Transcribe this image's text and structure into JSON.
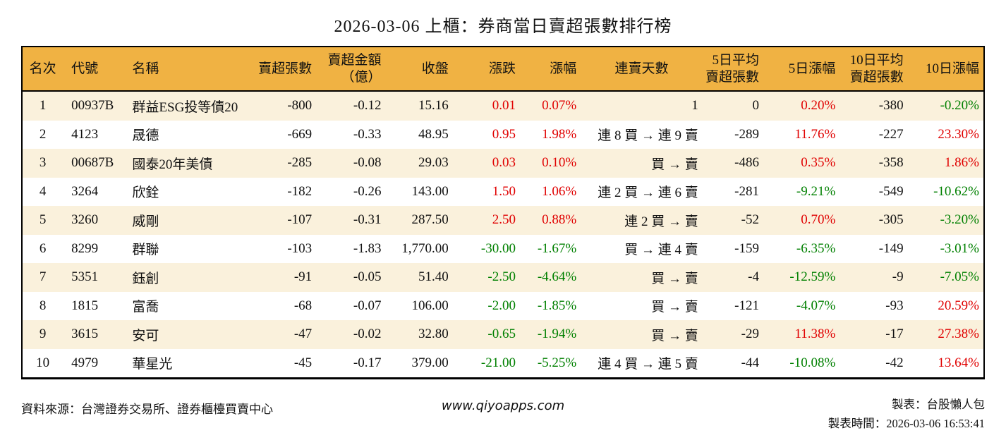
{
  "title": "2026-03-06 上櫃：券商當日賣超張數排行榜",
  "colors": {
    "header_bg": "#F0B243",
    "row_alt_bg": "#FAF1DC",
    "up_red": "#E00000",
    "down_green": "#008000"
  },
  "table": {
    "columns": [
      {
        "key": "rank",
        "label": "名次"
      },
      {
        "key": "code",
        "label": "代號"
      },
      {
        "key": "name",
        "label": "名稱"
      },
      {
        "key": "sell_volume",
        "label": "賣超張數"
      },
      {
        "key": "sell_amount",
        "label": "賣超金額\n（億）"
      },
      {
        "key": "close",
        "label": "收盤"
      },
      {
        "key": "change",
        "label": "漲跌"
      },
      {
        "key": "change_pct",
        "label": "漲幅"
      },
      {
        "key": "streak",
        "label": "連賣天數"
      },
      {
        "key": "avg5",
        "label": "5日平均\n賣超張數"
      },
      {
        "key": "pct5",
        "label": "5日漲幅"
      },
      {
        "key": "avg10",
        "label": "10日平均\n賣超張數"
      },
      {
        "key": "pct10",
        "label": "10日漲幅"
      }
    ],
    "rows": [
      {
        "rank": "1",
        "code": "00937B",
        "name": "群益ESG投等債20",
        "sell_volume": "-800",
        "sell_amount": "-0.12",
        "close": "15.16",
        "change": "0.01",
        "change_pct": "0.07%",
        "streak": "1",
        "avg5": "0",
        "pct5": "0.20%",
        "avg10": "-380",
        "pct10": "-0.20%"
      },
      {
        "rank": "2",
        "code": "4123",
        "name": "晟德",
        "sell_volume": "-669",
        "sell_amount": "-0.33",
        "close": "48.95",
        "change": "0.95",
        "change_pct": "1.98%",
        "streak": "連 8 買 → 連 9 賣",
        "avg5": "-289",
        "pct5": "11.76%",
        "avg10": "-227",
        "pct10": "23.30%"
      },
      {
        "rank": "3",
        "code": "00687B",
        "name": "國泰20年美債",
        "sell_volume": "-285",
        "sell_amount": "-0.08",
        "close": "29.03",
        "change": "0.03",
        "change_pct": "0.10%",
        "streak": "買 → 賣",
        "avg5": "-486",
        "pct5": "0.35%",
        "avg10": "-358",
        "pct10": "1.86%"
      },
      {
        "rank": "4",
        "code": "3264",
        "name": "欣銓",
        "sell_volume": "-182",
        "sell_amount": "-0.26",
        "close": "143.00",
        "change": "1.50",
        "change_pct": "1.06%",
        "streak": "連 2 買 → 連 6 賣",
        "avg5": "-281",
        "pct5": "-9.21%",
        "avg10": "-549",
        "pct10": "-10.62%"
      },
      {
        "rank": "5",
        "code": "3260",
        "name": "威剛",
        "sell_volume": "-107",
        "sell_amount": "-0.31",
        "close": "287.50",
        "change": "2.50",
        "change_pct": "0.88%",
        "streak": "連 2 買 → 賣",
        "avg5": "-52",
        "pct5": "0.70%",
        "avg10": "-305",
        "pct10": "-3.20%"
      },
      {
        "rank": "6",
        "code": "8299",
        "name": "群聯",
        "sell_volume": "-103",
        "sell_amount": "-1.83",
        "close": "1,770.00",
        "change": "-30.00",
        "change_pct": "-1.67%",
        "streak": "買 → 連 4 賣",
        "avg5": "-159",
        "pct5": "-6.35%",
        "avg10": "-149",
        "pct10": "-3.01%"
      },
      {
        "rank": "7",
        "code": "5351",
        "name": "鈺創",
        "sell_volume": "-91",
        "sell_amount": "-0.05",
        "close": "51.40",
        "change": "-2.50",
        "change_pct": "-4.64%",
        "streak": "買 → 賣",
        "avg5": "-4",
        "pct5": "-12.59%",
        "avg10": "-9",
        "pct10": "-7.05%"
      },
      {
        "rank": "8",
        "code": "1815",
        "name": "富喬",
        "sell_volume": "-68",
        "sell_amount": "-0.07",
        "close": "106.00",
        "change": "-2.00",
        "change_pct": "-1.85%",
        "streak": "買 → 賣",
        "avg5": "-121",
        "pct5": "-4.07%",
        "avg10": "-93",
        "pct10": "20.59%"
      },
      {
        "rank": "9",
        "code": "3615",
        "name": "安可",
        "sell_volume": "-47",
        "sell_amount": "-0.02",
        "close": "32.80",
        "change": "-0.65",
        "change_pct": "-1.94%",
        "streak": "買 → 賣",
        "avg5": "-29",
        "pct5": "11.38%",
        "avg10": "-17",
        "pct10": "27.38%"
      },
      {
        "rank": "10",
        "code": "4979",
        "name": "華星光",
        "sell_volume": "-45",
        "sell_amount": "-0.17",
        "close": "379.00",
        "change": "-21.00",
        "change_pct": "-5.25%",
        "streak": "連 4 買 → 連 5 賣",
        "avg5": "-44",
        "pct5": "-10.08%",
        "avg10": "-42",
        "pct10": "13.64%"
      }
    ]
  },
  "footer": {
    "source": "資料來源：台灣證券交易所、證券櫃檯買賣中心",
    "website": "www.qiyoapps.com",
    "maker": "製表：台股懶人包",
    "made_at": "製表時間：2026-03-06 16:53:41"
  },
  "chart_data": {
    "type": "table",
    "title": "2026-03-06 上櫃：券商當日賣超張數排行榜",
    "columns": [
      "名次",
      "代號",
      "名稱",
      "賣超張數",
      "賣超金額（億）",
      "收盤",
      "漲跌",
      "漲幅",
      "連賣天數",
      "5日平均賣超張數",
      "5日漲幅",
      "10日平均賣超張數",
      "10日漲幅"
    ],
    "rows": [
      [
        "1",
        "00937B",
        "群益ESG投等債20",
        -800,
        -0.12,
        15.16,
        0.01,
        "0.07%",
        "1",
        0,
        "0.20%",
        -380,
        "-0.20%"
      ],
      [
        "2",
        "4123",
        "晟德",
        -669,
        -0.33,
        48.95,
        0.95,
        "1.98%",
        "連 8 買 → 連 9 賣",
        -289,
        "11.76%",
        -227,
        "23.30%"
      ],
      [
        "3",
        "00687B",
        "國泰20年美債",
        -285,
        -0.08,
        29.03,
        0.03,
        "0.10%",
        "買 → 賣",
        -486,
        "0.35%",
        -358,
        "1.86%"
      ],
      [
        "4",
        "3264",
        "欣銓",
        -182,
        -0.26,
        143.0,
        1.5,
        "1.06%",
        "連 2 買 → 連 6 賣",
        -281,
        "-9.21%",
        -549,
        "-10.62%"
      ],
      [
        "5",
        "3260",
        "威剛",
        -107,
        -0.31,
        287.5,
        2.5,
        "0.88%",
        "連 2 買 → 賣",
        -52,
        "0.70%",
        -305,
        "-3.20%"
      ],
      [
        "6",
        "8299",
        "群聯",
        -103,
        -1.83,
        1770.0,
        -30.0,
        "-1.67%",
        "買 → 連 4 賣",
        -159,
        "-6.35%",
        -149,
        "-3.01%"
      ],
      [
        "7",
        "5351",
        "鈺創",
        -91,
        -0.05,
        51.4,
        -2.5,
        "-4.64%",
        "買 → 賣",
        -4,
        "-12.59%",
        -9,
        "-7.05%"
      ],
      [
        "8",
        "1815",
        "富喬",
        -68,
        -0.07,
        106.0,
        -2.0,
        "-1.85%",
        "買 → 賣",
        -121,
        "-4.07%",
        -93,
        "20.59%"
      ],
      [
        "9",
        "3615",
        "安可",
        -47,
        -0.02,
        32.8,
        -0.65,
        "-1.94%",
        "買 → 賣",
        -29,
        "11.38%",
        -17,
        "27.38%"
      ],
      [
        "10",
        "4979",
        "華星光",
        -45,
        -0.17,
        379.0,
        -21.0,
        "-5.25%",
        "連 4 買 → 連 5 賣",
        -44,
        "-10.08%",
        -42,
        "13.64%"
      ]
    ],
    "color_rule": "positive change values red (#E00000), negative green (#008000)",
    "legend_position": "none",
    "grid": false
  }
}
